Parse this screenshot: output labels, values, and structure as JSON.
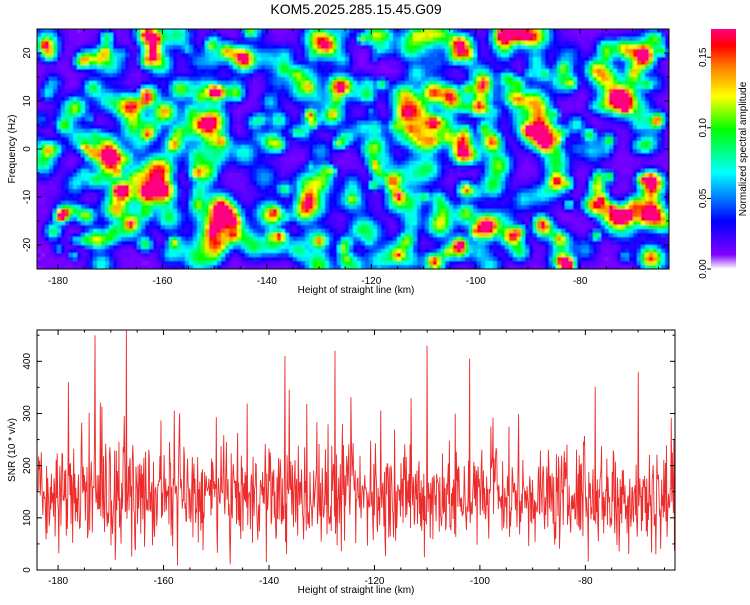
{
  "page_title": "KOM5.2025.285.15.45.G09",
  "colors": {
    "snr_line": "#ee2b2b",
    "axis": "#000000",
    "spectrogram_background": "#ffffff"
  },
  "chart_data": [
    {
      "type": "heatmap",
      "title": "KOM5.2025.285.15.45.G09",
      "xlabel": "Height of straight line (km)",
      "ylabel": "Frequency (Hz)",
      "xlim": [
        -184,
        -63
      ],
      "ylim": [
        -25,
        25
      ],
      "x_ticks": [
        -180,
        -160,
        -140,
        -120,
        -100,
        -80
      ],
      "y_ticks": [
        -20,
        -10,
        0,
        10,
        20
      ],
      "colorbar": {
        "label": "Normalized spectral amplitude",
        "range": [
          0,
          0.17
        ],
        "ticks": [
          0.0,
          0.05,
          0.1,
          0.15
        ],
        "tick_labels": [
          "0.00",
          "0.05",
          "0.10",
          "0.15"
        ],
        "colormap": [
          "#ffffff",
          "#8000ff",
          "#0000ff",
          "#00ffff",
          "#00ff00",
          "#ffff00",
          "#ff8000",
          "#ff0000",
          "#ff0080"
        ]
      },
      "notable_peaks": [
        {
          "x": -82.5,
          "y": -24,
          "value": 0.17
        },
        {
          "x": -84.5,
          "y": -6.5,
          "value": 0.15
        },
        {
          "x": -120.5,
          "y": 11,
          "value": 0.1
        },
        {
          "x": -72,
          "y": -14,
          "value": 0.09
        },
        {
          "x": -102,
          "y": -13,
          "value": 0.08
        },
        {
          "x": -175,
          "y": -5,
          "value": 0.07
        },
        {
          "x": -92,
          "y": 13.5,
          "value": 0.07
        },
        {
          "x": -65,
          "y": 22.5,
          "value": 0.07
        },
        {
          "x": -150,
          "y": 23,
          "value": 0.06
        }
      ]
    },
    {
      "type": "line",
      "xlabel": "Height of straight line (km)",
      "ylabel": "SNR (10 * v/v)",
      "xlim": [
        -184,
        -63
      ],
      "ylim": [
        0,
        460
      ],
      "x_ticks": [
        -180,
        -160,
        -140,
        -120,
        -100,
        -80
      ],
      "y_ticks": [
        0,
        100,
        200,
        300,
        400
      ],
      "series": [
        {
          "name": "SNR",
          "mean": 140,
          "spread": 60,
          "min": 0,
          "n_points": 1200
        }
      ],
      "peaks": [
        {
          "x": -173,
          "y": 450
        },
        {
          "x": -167,
          "y": 460
        },
        {
          "x": -110,
          "y": 430
        },
        {
          "x": -127.5,
          "y": 420
        },
        {
          "x": -137,
          "y": 410
        },
        {
          "x": -102,
          "y": 405
        },
        {
          "x": -178,
          "y": 360
        },
        {
          "x": -70,
          "y": 380
        }
      ]
    }
  ]
}
